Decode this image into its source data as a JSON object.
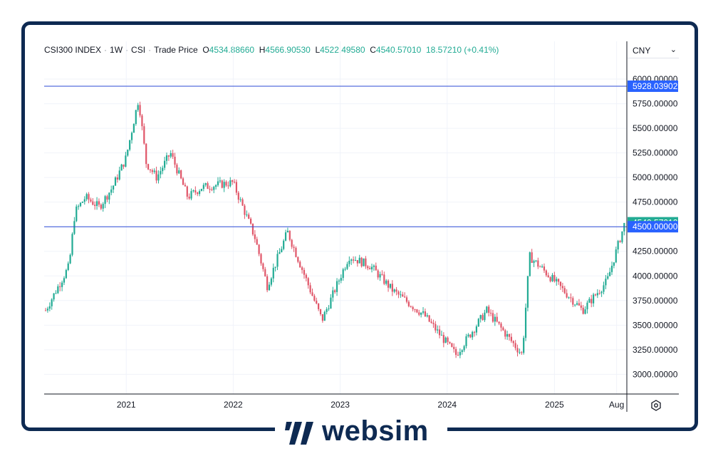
{
  "legend": {
    "symbol": "CSI300 INDEX",
    "interval": "1W",
    "exchange": "CSI",
    "price_type": "Trade Price",
    "o_label": "O",
    "o_value": "4534.88660",
    "h_label": "H",
    "h_value": "4566.90530",
    "l_label": "L",
    "l_value": "4522.49580",
    "c_label": "C",
    "c_value": "4540.57010",
    "change": "18.57210 (+0.41%)"
  },
  "currency": {
    "label": "CNY",
    "icon": "chevron-down-icon"
  },
  "settings": {
    "icon": "settings-icon"
  },
  "logo": {
    "text": "websim"
  },
  "colors": {
    "up": "#22ab94",
    "down": "#e05568",
    "hline": "#2d4bd6",
    "label_blue": "#2962ff",
    "label_green": "#22ab94",
    "frame": "#0e2a52"
  },
  "chart_data": {
    "type": "candlestick",
    "title": "CSI300 INDEX · 1W · CSI",
    "x_ticks": [
      "2021",
      "2022",
      "2023",
      "2024",
      "2025",
      "Aug"
    ],
    "y_ticks": [
      "3000.00000",
      "3250.00000",
      "3500.00000",
      "3750.00000",
      "4000.00000",
      "4250.00000",
      "4500.00000",
      "4750.00000",
      "5000.00000",
      "5250.00000",
      "5500.00000",
      "5750.00000",
      "6000.00000"
    ],
    "ylim": [
      2800,
      6080
    ],
    "grid": true,
    "horizontal_lines": [
      {
        "value": 5928.03902,
        "label": "5928.03902"
      },
      {
        "value": 4500.0,
        "label": "4500.00000"
      }
    ],
    "last_price": {
      "value": 4540.5701,
      "label": "4540.57010"
    },
    "close_path": [
      [
        "2020-04-01",
        3650
      ],
      [
        "2020-05-15",
        3900
      ],
      [
        "2020-06-20",
        4100
      ],
      [
        "2020-07-10",
        4650
      ],
      [
        "2020-08-15",
        4800
      ],
      [
        "2020-10-01",
        4700
      ],
      [
        "2020-11-15",
        4900
      ],
      [
        "2020-12-31",
        5200
      ],
      [
        "2021-02-12",
        5800
      ],
      [
        "2021-03-10",
        5150
      ],
      [
        "2021-04-15",
        5000
      ],
      [
        "2021-06-01",
        5250
      ],
      [
        "2021-07-30",
        4800
      ],
      [
        "2021-09-15",
        4900
      ],
      [
        "2021-12-31",
        4950
      ],
      [
        "2022-03-15",
        4400
      ],
      [
        "2022-04-27",
        3900
      ],
      [
        "2022-07-05",
        4450
      ],
      [
        "2022-10-31",
        3550
      ],
      [
        "2023-01-31",
        4200
      ],
      [
        "2023-04-15",
        4100
      ],
      [
        "2023-06-30",
        3850
      ],
      [
        "2023-10-15",
        3600
      ],
      [
        "2024-01-31",
        3200
      ],
      [
        "2024-05-15",
        3650
      ],
      [
        "2024-09-13",
        3200
      ],
      [
        "2024-10-08",
        4200
      ],
      [
        "2024-12-31",
        3950
      ],
      [
        "2025-04-07",
        3650
      ],
      [
        "2025-06-30",
        3950
      ],
      [
        "2025-08-29",
        4540
      ]
    ]
  }
}
